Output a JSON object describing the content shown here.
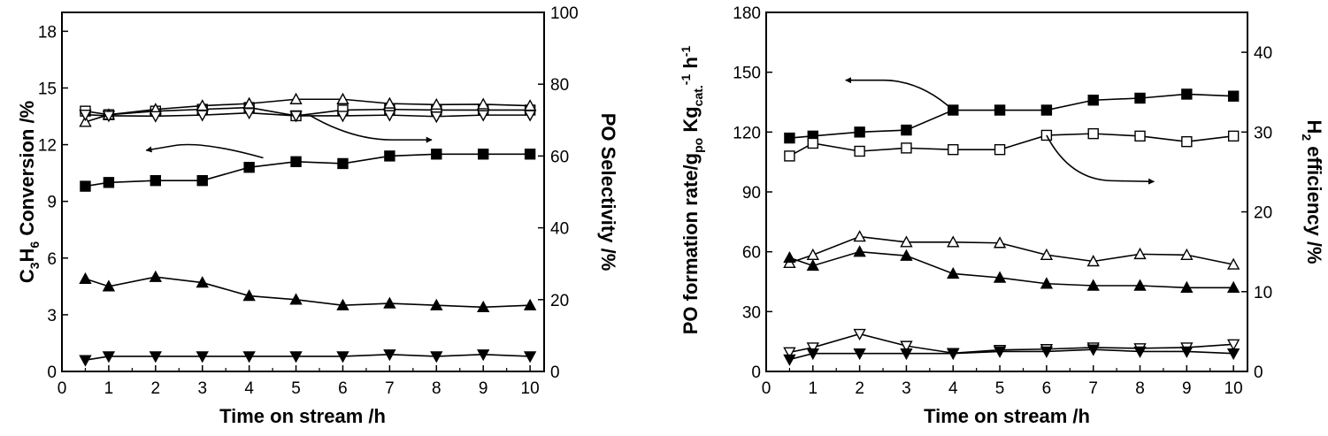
{
  "chart_data": [
    {
      "type": "line",
      "xlabel": "Time on stream /h",
      "ylabel_left": {
        "main": "C",
        "sub1": "3",
        "mid": "H",
        "sub2": "6",
        "tail": " Conversion /%"
      },
      "ylabel_right": "PO Selectivity /%",
      "xlim": [
        0,
        10.3
      ],
      "ylim_left": [
        0,
        19
      ],
      "ylim_right": [
        0,
        100
      ],
      "x_ticks": [
        "0",
        "1",
        "2",
        "3",
        "4",
        "5",
        "6",
        "7",
        "8",
        "9",
        "10"
      ],
      "y_left_ticks": [
        "0",
        "3",
        "6",
        "9",
        "12",
        "15",
        "18"
      ],
      "y_right_ticks": [
        "0",
        "20",
        "40",
        "60",
        "80",
        "100"
      ],
      "grid": false,
      "series": [
        {
          "axis": "right",
          "marker": "square-open",
          "x": [
            0.5,
            1,
            2,
            3,
            4,
            5,
            6,
            7,
            8,
            9,
            10
          ],
          "y": [
            72.5,
            71.5,
            72.5,
            73,
            73.5,
            71.2,
            72.8,
            73,
            72.8,
            72.8,
            72.8
          ]
        },
        {
          "axis": "right",
          "marker": "triangle-open",
          "x": [
            0.5,
            1,
            2,
            3,
            4,
            5,
            6,
            7,
            8,
            9,
            10
          ],
          "y": [
            69.5,
            71.5,
            73,
            74,
            74.6,
            75.8,
            75.8,
            74.6,
            74.3,
            74.4,
            74
          ]
        },
        {
          "axis": "right",
          "marker": "triangle-down-open",
          "x": [
            0.5,
            1,
            2,
            3,
            4,
            5,
            6,
            7,
            8,
            9,
            10
          ],
          "y": [
            71.5,
            71.2,
            71.1,
            71.4,
            72,
            71.2,
            71.2,
            71.4,
            71,
            71.4,
            71.4
          ]
        },
        {
          "axis": "left",
          "marker": "square-filled",
          "x": [
            0.5,
            1,
            2,
            3,
            4,
            5,
            6,
            7,
            8,
            9,
            10
          ],
          "y": [
            9.8,
            10.0,
            10.1,
            10.1,
            10.8,
            11.1,
            11.0,
            11.4,
            11.5,
            11.5,
            11.5
          ]
        },
        {
          "axis": "left",
          "marker": "triangle-filled",
          "x": [
            0.5,
            1,
            2,
            3,
            4,
            5,
            6,
            7,
            8,
            9,
            10
          ],
          "y": [
            4.9,
            4.5,
            5.0,
            4.7,
            4.0,
            3.8,
            3.5,
            3.6,
            3.5,
            3.4,
            3.5
          ]
        },
        {
          "axis": "left",
          "marker": "triangle-down-filled",
          "x": [
            0.5,
            1,
            2,
            3,
            4,
            5,
            6,
            7,
            8,
            9,
            10
          ],
          "y": [
            0.6,
            0.8,
            0.8,
            0.8,
            0.8,
            0.8,
            0.8,
            0.9,
            0.8,
            0.9,
            0.8
          ]
        }
      ],
      "annotations": [
        {
          "type": "curved-arrow",
          "direction": "left-axis",
          "from": [
            4.3,
            11.3
          ],
          "via": [
            3.0,
            12.2
          ],
          "to": [
            1.8,
            11.7
          ]
        },
        {
          "type": "curved-arrow",
          "direction": "right-axis",
          "from": [
            5.3,
            71.3
          ],
          "via": [
            6.2,
            64.5
          ],
          "to": [
            7.9,
            64.5
          ]
        }
      ]
    },
    {
      "type": "line",
      "xlabel": "Time on stream /h",
      "ylabel_left": {
        "main": "PO formation rate/g",
        "sub1": "po",
        "mid": " Kg",
        "sub2": "cat.",
        "sup1": "-1",
        "mid2": " h",
        "sup2": "-1"
      },
      "ylabel_right": {
        "main": "H",
        "sub1": "2",
        "tail": " efficiency /%"
      },
      "xlim": [
        0,
        10.3
      ],
      "ylim_left": [
        0,
        180
      ],
      "ylim_right": [
        0,
        45
      ],
      "x_ticks": [
        "0",
        "1",
        "2",
        "3",
        "4",
        "5",
        "6",
        "7",
        "8",
        "9",
        "10"
      ],
      "y_left_ticks": [
        "0",
        "30",
        "60",
        "90",
        "120",
        "150",
        "180"
      ],
      "y_right_ticks": [
        "0",
        "10",
        "20",
        "30",
        "40"
      ],
      "grid": false,
      "series": [
        {
          "axis": "left",
          "marker": "square-filled",
          "x": [
            0.5,
            1,
            2,
            3,
            4,
            5,
            6,
            7,
            8,
            9,
            10
          ],
          "y": [
            117,
            118,
            120,
            121,
            131,
            131,
            131,
            136,
            137,
            139,
            138
          ]
        },
        {
          "axis": "right",
          "marker": "square-open",
          "x": [
            0.5,
            1,
            2,
            3,
            4,
            5,
            6,
            7,
            8,
            9,
            10
          ],
          "y": [
            27,
            28.6,
            27.6,
            28,
            27.8,
            27.8,
            29.6,
            29.8,
            29.5,
            28.8,
            29.5
          ]
        },
        {
          "axis": "right",
          "marker": "triangle-open",
          "x": [
            0.5,
            1,
            2,
            3,
            4,
            5,
            6,
            7,
            8,
            9,
            10
          ],
          "y": [
            13.6,
            14.6,
            16.9,
            16.2,
            16.2,
            16.1,
            14.6,
            13.8,
            14.7,
            14.6,
            13.4
          ]
        },
        {
          "axis": "left",
          "marker": "triangle-filled",
          "x": [
            0.5,
            1,
            2,
            3,
            4,
            5,
            6,
            7,
            8,
            9,
            10
          ],
          "y": [
            57,
            53,
            60,
            58,
            49,
            47,
            44,
            43,
            43,
            42,
            42
          ]
        },
        {
          "axis": "right",
          "marker": "triangle-down-open",
          "x": [
            0.5,
            1,
            2,
            3,
            4,
            5,
            6,
            7,
            8,
            9,
            10
          ],
          "y": [
            2.4,
            3,
            4.7,
            3.2,
            2.3,
            2.7,
            2.8,
            3,
            2.9,
            3,
            3.4
          ]
        },
        {
          "axis": "left",
          "marker": "triangle-down-filled",
          "x": [
            0.5,
            1,
            2,
            3,
            4,
            5,
            6,
            7,
            8,
            9,
            10
          ],
          "y": [
            6,
            9,
            9,
            9,
            9,
            10,
            10,
            11,
            10,
            10,
            9
          ]
        }
      ],
      "annotations": [
        {
          "type": "curved-arrow",
          "direction": "left-axis",
          "from": [
            4.0,
            131
          ],
          "via": [
            3.3,
            146
          ],
          "to": [
            1.7,
            146
          ]
        },
        {
          "type": "curved-arrow",
          "direction": "right-axis",
          "from": [
            6.0,
            29.6
          ],
          "via": [
            6.5,
            24.0
          ],
          "to": [
            8.3,
            23.8
          ]
        }
      ]
    }
  ]
}
